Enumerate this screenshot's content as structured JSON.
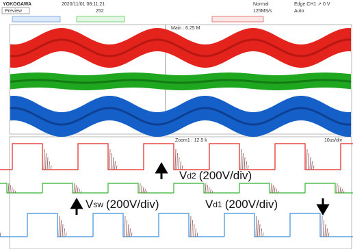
{
  "header": {
    "brand": "YOKOGAWA",
    "datetime": "2020/11/01 08:11:21",
    "mode": "Preview",
    "count": "252",
    "acquisition": "Normal",
    "rate": "125MS/s",
    "trigger": "Edge CH1 ↗ 0 V",
    "trigger_mode": "Auto"
  },
  "panels": {
    "main": "Main : 6.25 M",
    "zoom": "Zoom1 : 12.5 k",
    "timebase": "10us/div"
  },
  "annotations": [
    {
      "symbol": "V",
      "sub": "d2",
      "scale": "(200V/div)"
    },
    {
      "symbol": "V",
      "sub": "sw",
      "scale": "(200V/div)"
    },
    {
      "symbol": "V",
      "sub": "d1",
      "scale": "(200V/div)"
    }
  ]
}
